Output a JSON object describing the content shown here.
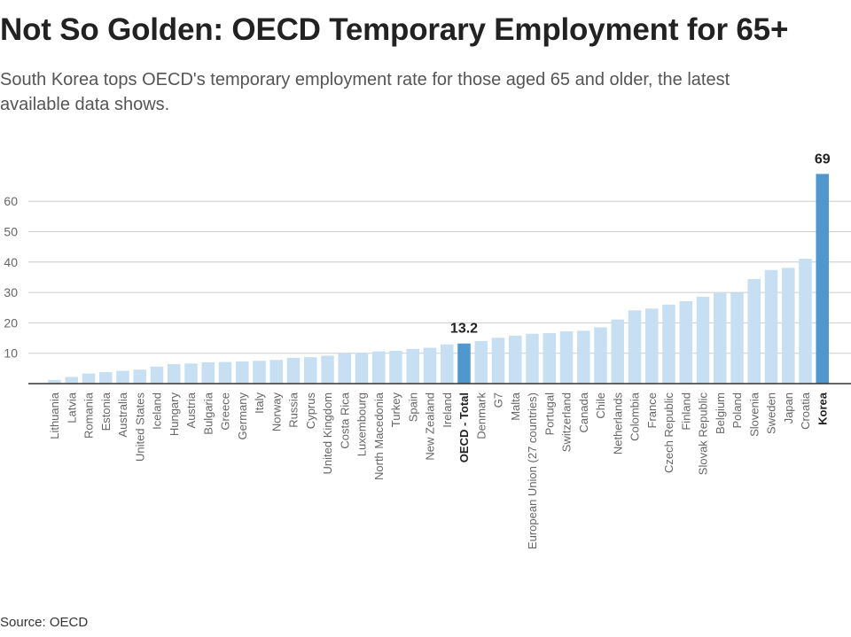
{
  "title": "Not So Golden: OECD Temporary Employment for 65+",
  "subtitle": "South Korea tops OECD's temporary employment rate for those aged 65 and older, the latest available data shows.",
  "source": "Source: OECD",
  "colors": {
    "bar": "#c6dff2",
    "highlight": "#4f97cd",
    "grid": "#cccccc",
    "axis": "#333333"
  },
  "chart_data": {
    "type": "bar",
    "title": "Not So Golden: OECD Temporary Employment for 65+",
    "xlabel": "",
    "ylabel": "",
    "ylim": [
      0,
      70
    ],
    "yticks": [
      10,
      20,
      30,
      40,
      50,
      60
    ],
    "grid": true,
    "legend": "none",
    "categories": [
      "Lithuania",
      "Latvia",
      "Romania",
      "Estonia",
      "Australia",
      "United States",
      "Iceland",
      "Hungary",
      "Austria",
      "Bulgaria",
      "Greece",
      "Germany",
      "Italy",
      "Norway",
      "Russia",
      "Cyprus",
      "United Kingdom",
      "Costa Rica",
      "Luxembourg",
      "North Macedonia",
      "Turkey",
      "Spain",
      "New Zealand",
      "Ireland",
      "OECD - Total",
      "Denmark",
      "G7",
      "Malta",
      "European Union (27 countries)",
      "Portugal",
      "Switzerland",
      "Canada",
      "Chile",
      "Netherlands",
      "Colombia",
      "France",
      "Czech Republic",
      "Finland",
      "Slovak Republic",
      "Belgium",
      "Poland",
      "Slovenia",
      "Sweden",
      "Japan",
      "Croatia",
      "Korea"
    ],
    "values": [
      1.2,
      2.2,
      3.3,
      3.8,
      4.2,
      4.6,
      5.6,
      6.4,
      6.6,
      7.0,
      7.1,
      7.3,
      7.5,
      7.8,
      8.5,
      8.7,
      9.2,
      10.0,
      10.2,
      10.6,
      10.8,
      11.4,
      11.8,
      12.9,
      13.2,
      14.0,
      15.1,
      15.8,
      16.4,
      16.6,
      17.2,
      17.4,
      18.5,
      21.1,
      24.1,
      24.7,
      26.0,
      27.1,
      28.6,
      29.8,
      29.9,
      34.4,
      37.4,
      38.1,
      41.1,
      69.0
    ],
    "highlight": [
      "OECD - Total",
      "Korea"
    ],
    "data_labels": {
      "OECD - Total": "13.2",
      "Korea": "69"
    }
  }
}
